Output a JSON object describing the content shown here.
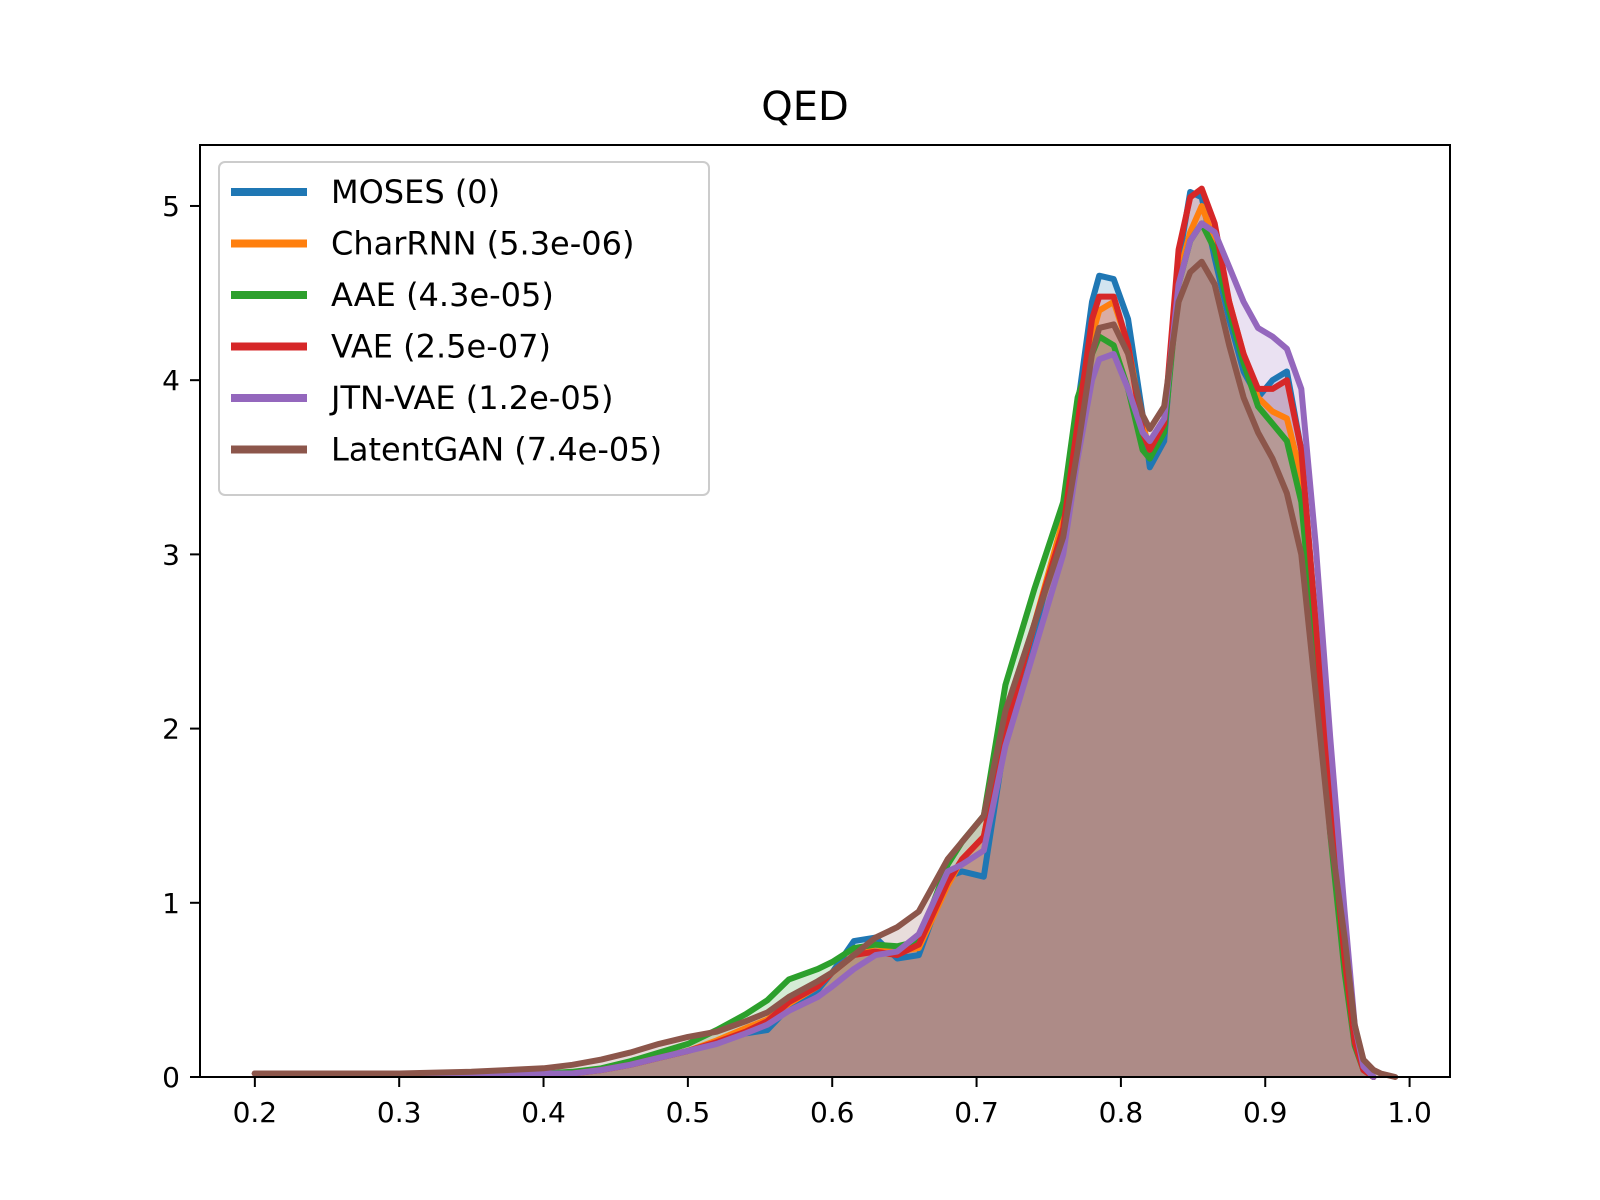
{
  "chart_data": {
    "type": "area",
    "title": "QED",
    "xlabel": "",
    "ylabel": "",
    "xlim": [
      0.162,
      1.028
    ],
    "ylim": [
      0,
      5.35
    ],
    "xticks": [
      0.2,
      0.3,
      0.4,
      0.5,
      0.6,
      0.7,
      0.8,
      0.9,
      1.0
    ],
    "xtick_labels": [
      "0.2",
      "0.3",
      "0.4",
      "0.5",
      "0.6",
      "0.7",
      "0.8",
      "0.9",
      "1.0"
    ],
    "yticks": [
      0,
      1,
      2,
      3,
      4,
      5
    ],
    "ytick_labels": [
      "0",
      "1",
      "2",
      "3",
      "4",
      "5"
    ],
    "grid": false,
    "legend_position": "top-left",
    "series": [
      {
        "name": "MOSES (0)",
        "color": "#1f77b4",
        "x": [
          0.2,
          0.25,
          0.3,
          0.35,
          0.4,
          0.42,
          0.44,
          0.46,
          0.48,
          0.5,
          0.52,
          0.54,
          0.555,
          0.57,
          0.59,
          0.6,
          0.615,
          0.63,
          0.645,
          0.66,
          0.68,
          0.69,
          0.705,
          0.72,
          0.74,
          0.76,
          0.77,
          0.78,
          0.785,
          0.795,
          0.805,
          0.815,
          0.82,
          0.83,
          0.84,
          0.848,
          0.856,
          0.865,
          0.875,
          0.885,
          0.895,
          0.905,
          0.915,
          0.925,
          0.935,
          0.945,
          0.955,
          0.962,
          0.968,
          0.975
        ],
        "y": [
          0.02,
          0.02,
          0.02,
          0.02,
          0.02,
          0.02,
          0.04,
          0.07,
          0.11,
          0.15,
          0.2,
          0.25,
          0.27,
          0.4,
          0.5,
          0.6,
          0.78,
          0.8,
          0.68,
          0.7,
          1.15,
          1.18,
          1.15,
          1.95,
          2.55,
          3.2,
          3.85,
          4.45,
          4.6,
          4.58,
          4.35,
          3.8,
          3.5,
          3.65,
          4.68,
          5.08,
          5.05,
          4.7,
          4.35,
          4.05,
          3.9,
          4.0,
          4.05,
          3.6,
          2.6,
          1.6,
          0.7,
          0.22,
          0.05,
          0.0
        ]
      },
      {
        "name": "CharRNN (5.3e-06)",
        "color": "#ff7f0e",
        "x": [
          0.2,
          0.25,
          0.3,
          0.35,
          0.4,
          0.42,
          0.44,
          0.46,
          0.48,
          0.5,
          0.52,
          0.54,
          0.555,
          0.57,
          0.59,
          0.6,
          0.615,
          0.63,
          0.645,
          0.66,
          0.68,
          0.69,
          0.705,
          0.72,
          0.74,
          0.76,
          0.77,
          0.78,
          0.785,
          0.795,
          0.805,
          0.815,
          0.82,
          0.83,
          0.84,
          0.848,
          0.856,
          0.865,
          0.875,
          0.885,
          0.895,
          0.905,
          0.915,
          0.925,
          0.935,
          0.945,
          0.955,
          0.962,
          0.968,
          0.975
        ],
        "y": [
          0.02,
          0.02,
          0.02,
          0.02,
          0.02,
          0.02,
          0.04,
          0.07,
          0.11,
          0.15,
          0.21,
          0.28,
          0.33,
          0.42,
          0.52,
          0.6,
          0.7,
          0.76,
          0.72,
          0.74,
          1.1,
          1.25,
          1.38,
          2.0,
          2.6,
          3.2,
          3.8,
          4.25,
          4.4,
          4.45,
          4.2,
          3.75,
          3.6,
          3.75,
          4.6,
          4.85,
          5.0,
          4.8,
          4.45,
          4.15,
          3.9,
          3.82,
          3.78,
          3.45,
          2.55,
          1.55,
          0.7,
          0.22,
          0.05,
          0.0
        ]
      },
      {
        "name": "AAE (4.3e-05)",
        "color": "#2ca02c",
        "x": [
          0.2,
          0.25,
          0.3,
          0.35,
          0.4,
          0.42,
          0.44,
          0.46,
          0.48,
          0.5,
          0.52,
          0.54,
          0.555,
          0.57,
          0.59,
          0.6,
          0.615,
          0.63,
          0.645,
          0.66,
          0.68,
          0.69,
          0.705,
          0.72,
          0.74,
          0.76,
          0.77,
          0.78,
          0.785,
          0.795,
          0.805,
          0.815,
          0.82,
          0.83,
          0.84,
          0.848,
          0.856,
          0.865,
          0.875,
          0.885,
          0.895,
          0.905,
          0.915,
          0.925,
          0.935,
          0.945,
          0.955,
          0.962,
          0.968,
          0.975
        ],
        "y": [
          0.02,
          0.02,
          0.02,
          0.02,
          0.02,
          0.03,
          0.05,
          0.09,
          0.14,
          0.19,
          0.27,
          0.36,
          0.44,
          0.56,
          0.62,
          0.66,
          0.74,
          0.76,
          0.75,
          0.78,
          1.22,
          1.35,
          1.5,
          2.25,
          2.8,
          3.3,
          3.9,
          4.15,
          4.25,
          4.2,
          3.95,
          3.6,
          3.55,
          3.7,
          4.55,
          4.8,
          4.9,
          4.75,
          4.4,
          4.1,
          3.85,
          3.75,
          3.65,
          3.3,
          2.4,
          1.4,
          0.6,
          0.18,
          0.04,
          0.0
        ]
      },
      {
        "name": "VAE (2.5e-07)",
        "color": "#d62728",
        "x": [
          0.2,
          0.25,
          0.3,
          0.35,
          0.4,
          0.42,
          0.44,
          0.46,
          0.48,
          0.5,
          0.52,
          0.54,
          0.555,
          0.57,
          0.59,
          0.6,
          0.615,
          0.63,
          0.645,
          0.66,
          0.68,
          0.69,
          0.705,
          0.72,
          0.74,
          0.76,
          0.77,
          0.78,
          0.785,
          0.795,
          0.805,
          0.815,
          0.82,
          0.83,
          0.84,
          0.848,
          0.856,
          0.865,
          0.875,
          0.885,
          0.895,
          0.905,
          0.915,
          0.925,
          0.935,
          0.945,
          0.955,
          0.962,
          0.968,
          0.975
        ],
        "y": [
          0.02,
          0.02,
          0.02,
          0.02,
          0.02,
          0.02,
          0.04,
          0.07,
          0.11,
          0.15,
          0.2,
          0.26,
          0.32,
          0.43,
          0.52,
          0.6,
          0.7,
          0.72,
          0.7,
          0.76,
          1.12,
          1.25,
          1.38,
          2.0,
          2.6,
          3.15,
          3.75,
          4.35,
          4.48,
          4.48,
          4.2,
          3.7,
          3.6,
          3.75,
          4.75,
          5.05,
          5.1,
          4.9,
          4.45,
          4.15,
          3.95,
          3.95,
          4.0,
          3.6,
          2.6,
          1.55,
          0.68,
          0.2,
          0.04,
          0.0
        ]
      },
      {
        "name": "JTN-VAE (1.2e-05)",
        "color": "#9467bd",
        "x": [
          0.2,
          0.25,
          0.3,
          0.35,
          0.4,
          0.42,
          0.44,
          0.46,
          0.48,
          0.5,
          0.52,
          0.54,
          0.555,
          0.57,
          0.59,
          0.6,
          0.615,
          0.63,
          0.645,
          0.66,
          0.68,
          0.69,
          0.705,
          0.72,
          0.74,
          0.76,
          0.77,
          0.78,
          0.785,
          0.795,
          0.805,
          0.815,
          0.82,
          0.83,
          0.84,
          0.848,
          0.856,
          0.865,
          0.875,
          0.885,
          0.895,
          0.905,
          0.915,
          0.925,
          0.935,
          0.945,
          0.955,
          0.962,
          0.968,
          0.975
        ],
        "y": [
          0.02,
          0.02,
          0.02,
          0.02,
          0.02,
          0.02,
          0.04,
          0.07,
          0.11,
          0.15,
          0.19,
          0.25,
          0.3,
          0.38,
          0.46,
          0.52,
          0.62,
          0.7,
          0.72,
          0.82,
          1.18,
          1.22,
          1.3,
          1.9,
          2.45,
          3.0,
          3.55,
          4.0,
          4.12,
          4.15,
          3.95,
          3.7,
          3.65,
          3.78,
          4.55,
          4.8,
          4.9,
          4.85,
          4.65,
          4.45,
          4.3,
          4.25,
          4.18,
          3.95,
          3.05,
          1.95,
          0.95,
          0.3,
          0.06,
          0.0
        ]
      },
      {
        "name": "LatentGAN (7.4e-05)",
        "color": "#8c564b",
        "x": [
          0.2,
          0.25,
          0.3,
          0.35,
          0.4,
          0.42,
          0.44,
          0.46,
          0.48,
          0.5,
          0.52,
          0.54,
          0.555,
          0.57,
          0.59,
          0.6,
          0.615,
          0.63,
          0.645,
          0.66,
          0.68,
          0.69,
          0.705,
          0.72,
          0.74,
          0.76,
          0.77,
          0.78,
          0.785,
          0.795,
          0.805,
          0.815,
          0.82,
          0.83,
          0.84,
          0.848,
          0.856,
          0.865,
          0.875,
          0.885,
          0.895,
          0.905,
          0.915,
          0.925,
          0.935,
          0.945,
          0.955,
          0.962,
          0.968,
          0.975,
          0.98,
          0.99
        ],
        "y": [
          0.02,
          0.02,
          0.02,
          0.03,
          0.05,
          0.07,
          0.1,
          0.14,
          0.19,
          0.23,
          0.26,
          0.32,
          0.37,
          0.46,
          0.55,
          0.6,
          0.7,
          0.8,
          0.86,
          0.95,
          1.25,
          1.35,
          1.5,
          2.1,
          2.6,
          3.1,
          3.6,
          4.15,
          4.3,
          4.32,
          4.15,
          3.8,
          3.72,
          3.85,
          4.45,
          4.62,
          4.68,
          4.55,
          4.2,
          3.9,
          3.7,
          3.55,
          3.35,
          3.0,
          2.2,
          1.4,
          0.8,
          0.3,
          0.1,
          0.04,
          0.02,
          0.0
        ]
      }
    ]
  }
}
